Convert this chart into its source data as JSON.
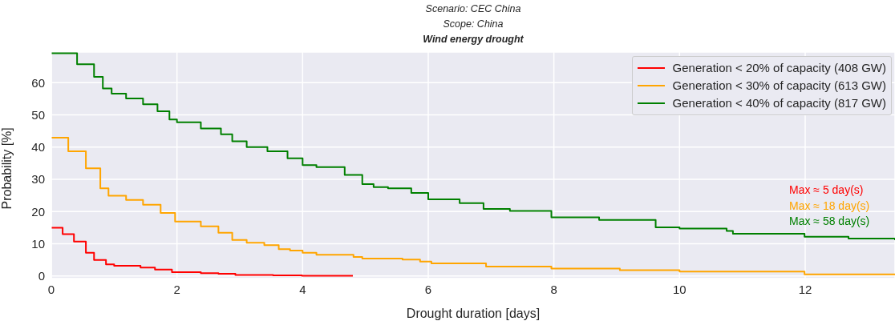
{
  "chart_data": {
    "type": "step",
    "title": "Wind energy drought",
    "subtitle": "Scenario: CEC China\nScope: China",
    "xlabel": "Drought duration [days]",
    "ylabel": "Probability [%]",
    "xlim": [
      0,
      13.43
    ],
    "ylim": [
      -0.8,
      69.5
    ],
    "xticks": [
      0,
      2,
      4,
      6,
      8,
      10,
      12
    ],
    "yticks": [
      0,
      10,
      20,
      30,
      40,
      50,
      60
    ],
    "grid": true,
    "legend": "top right",
    "series": [
      {
        "name": "Generation < 20% of capacity (408 GW)",
        "color": "#ff0000",
        "x": [
          0,
          0.18,
          0.36,
          0.55,
          0.68,
          0.87,
          1.0,
          1.42,
          1.65,
          1.92,
          2.38,
          2.66,
          2.93,
          3.53,
          3.99,
          4.8
        ],
        "values": [
          15.0,
          13.0,
          10.7,
          7.2,
          5.0,
          3.6,
          3.2,
          2.6,
          2.0,
          1.2,
          0.9,
          0.7,
          0.3,
          0.2,
          0.1,
          0.1
        ]
      },
      {
        "name": "Generation < 30% of capacity (613 GW)",
        "color": "#ffa500",
        "x": [
          0,
          0.27,
          0.55,
          0.78,
          0.91,
          1.19,
          1.46,
          1.74,
          1.97,
          2.38,
          2.66,
          2.88,
          3.11,
          3.39,
          3.62,
          3.8,
          4.0,
          4.22,
          4.81,
          4.95,
          5.59,
          5.87,
          6.05,
          6.92,
          7.96,
          9.05,
          10.0,
          11.99,
          13.43
        ],
        "values": [
          42.9,
          38.7,
          33.4,
          27.2,
          24.9,
          23.6,
          22.1,
          19.6,
          16.9,
          15.4,
          13.4,
          11.2,
          10.3,
          9.6,
          8.3,
          7.9,
          7.2,
          6.6,
          5.9,
          5.4,
          5.1,
          4.5,
          3.9,
          2.9,
          2.3,
          1.8,
          1.4,
          0.5,
          0.3
        ]
      },
      {
        "name": "Generation < 40% of capacity (817 GW)",
        "color": "#008000",
        "x": [
          0,
          0.41,
          0.68,
          0.82,
          0.96,
          1.19,
          1.46,
          1.69,
          1.88,
          2.0,
          2.38,
          2.7,
          2.88,
          3.11,
          3.44,
          3.76,
          4.0,
          4.22,
          4.67,
          4.95,
          5.13,
          5.36,
          5.73,
          6.0,
          6.5,
          6.88,
          7.3,
          7.96,
          8.72,
          9.62,
          10.0,
          10.75,
          10.85,
          11.99,
          12.69,
          13.43
        ],
        "values": [
          69.1,
          65.7,
          61.8,
          58.2,
          56.6,
          55.1,
          53.3,
          51.1,
          48.6,
          47.7,
          45.8,
          44.0,
          41.8,
          40.0,
          38.7,
          36.5,
          34.4,
          33.8,
          31.4,
          28.5,
          27.6,
          27.2,
          25.8,
          23.8,
          22.6,
          20.8,
          20.2,
          18.2,
          17.4,
          15.1,
          14.7,
          14.0,
          13.1,
          12.2,
          11.6,
          11.1
        ]
      }
    ],
    "annotations": [
      "Max ≈ 5 day(s)",
      "Max ≈ 18 day(s)",
      "Max ≈ 58 day(s)"
    ]
  }
}
